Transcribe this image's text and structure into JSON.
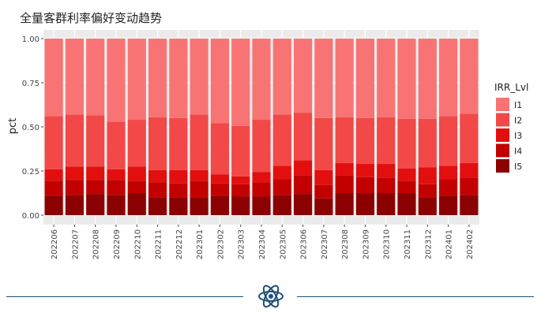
{
  "chart_data": {
    "type": "bar",
    "stacked": true,
    "title": "全量客群利率偏好变动趋势",
    "xlabel": "",
    "ylabel": "pct",
    "ylim": [
      0,
      1.0
    ],
    "yticks": [
      "0.00",
      "0.25",
      "0.50",
      "0.75",
      "1.00"
    ],
    "grid": true,
    "legend_position": "right",
    "legend_title": "IRR_Lvl",
    "categories": [
      "202206",
      "202207",
      "202208",
      "202209",
      "202210",
      "202211",
      "202212",
      "202301",
      "202302",
      "202303",
      "202304",
      "202305",
      "202306",
      "202307",
      "202308",
      "202309",
      "202310",
      "202311",
      "202312",
      "202401",
      "202402"
    ],
    "series": [
      {
        "name": "I1",
        "color": "#f87474",
        "values": [
          0.44,
          0.43,
          0.435,
          0.47,
          0.46,
          0.445,
          0.45,
          0.43,
          0.48,
          0.495,
          0.46,
          0.43,
          0.42,
          0.45,
          0.445,
          0.45,
          0.445,
          0.455,
          0.455,
          0.44,
          0.425
        ]
      },
      {
        "name": "I2",
        "color": "#f24848",
        "values": [
          0.3,
          0.295,
          0.29,
          0.27,
          0.265,
          0.3,
          0.295,
          0.315,
          0.29,
          0.285,
          0.295,
          0.29,
          0.27,
          0.295,
          0.26,
          0.26,
          0.265,
          0.28,
          0.275,
          0.28,
          0.28
        ]
      },
      {
        "name": "I3",
        "color": "#e30f0f",
        "values": [
          0.065,
          0.075,
          0.075,
          0.06,
          0.08,
          0.07,
          0.075,
          0.06,
          0.05,
          0.045,
          0.06,
          0.075,
          0.085,
          0.085,
          0.07,
          0.075,
          0.08,
          0.07,
          0.095,
          0.075,
          0.085
        ]
      },
      {
        "name": "I4",
        "color": "#c20000",
        "values": [
          0.085,
          0.085,
          0.08,
          0.085,
          0.07,
          0.085,
          0.08,
          0.095,
          0.07,
          0.07,
          0.08,
          0.09,
          0.105,
          0.075,
          0.1,
          0.09,
          0.085,
          0.07,
          0.075,
          0.095,
          0.095
        ]
      },
      {
        "name": "I5",
        "color": "#8b0000",
        "values": [
          0.11,
          0.115,
          0.12,
          0.115,
          0.125,
          0.1,
          0.1,
          0.1,
          0.11,
          0.105,
          0.105,
          0.115,
          0.12,
          0.095,
          0.125,
          0.125,
          0.125,
          0.125,
          0.1,
          0.11,
          0.115
        ]
      }
    ]
  },
  "footer": {
    "icon": "atom-icon",
    "line_color": "#1f4e79"
  }
}
